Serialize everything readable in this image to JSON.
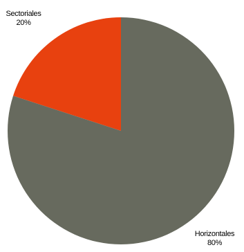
{
  "chart_data": {
    "type": "pie",
    "title": "",
    "slices": [
      {
        "label": "Sectoriales",
        "value": 20,
        "value_label": "20%",
        "color": "#e8410f"
      },
      {
        "label": "Horizontales",
        "value": 80,
        "value_label": "80%",
        "color": "#676a5e"
      }
    ],
    "start_angle": "12 o'clock",
    "direction": "counter-clockwise",
    "legend": "none",
    "grid": false
  }
}
